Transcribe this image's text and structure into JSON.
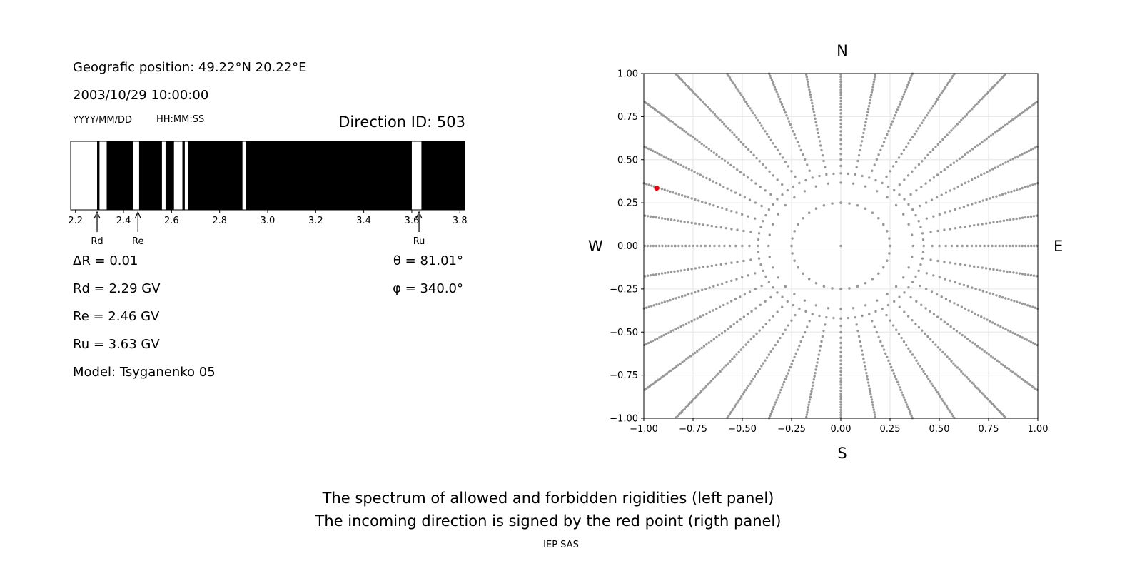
{
  "info": {
    "position": "Geografic position: 49.22°N 20.22°E",
    "datetime": "2003/10/29 10:00:00",
    "date_format": "YYYY/MM/DD",
    "time_format": "HH:MM:SS",
    "direction_id": "Direction ID: 503",
    "delta_r": "ΔR = 0.01",
    "rd": "Rd = 2.29 GV",
    "re": "Re = 2.46 GV",
    "ru": "Ru = 3.63 GV",
    "model": "Model: Tsyganenko 05",
    "theta": "θ = 81.01°",
    "phi": "φ = 340.0°"
  },
  "footer": {
    "line1": "The spectrum of allowed and forbidden rigidities (left panel)",
    "line2": "The incoming direction is signed by the red point (rigth panel)",
    "credit": "IEP SAS"
  },
  "compass": {
    "n": "N",
    "s": "S",
    "w": "W",
    "e": "E"
  },
  "colors": {
    "point": "#999999",
    "highlight": "#e8000b",
    "allowed": "#ffffff",
    "forbidden": "#000000"
  },
  "chart_data": [
    {
      "type": "bar",
      "name": "rigidity-spectrum",
      "xlim": [
        2.18,
        3.82
      ],
      "xticks": [
        2.2,
        2.4,
        2.6,
        2.8,
        3.0,
        3.2,
        3.4,
        3.6,
        3.8
      ],
      "allowed_intervals": [
        [
          2.18,
          2.29
        ],
        [
          2.3,
          2.33
        ],
        [
          2.44,
          2.465
        ],
        [
          2.56,
          2.575
        ],
        [
          2.61,
          2.645
        ],
        [
          2.655,
          2.67
        ],
        [
          2.895,
          2.91
        ],
        [
          3.6,
          3.64
        ]
      ],
      "markers": [
        {
          "label": "Rd",
          "value": 2.29
        },
        {
          "label": "Re",
          "value": 2.46
        },
        {
          "label": "Ru",
          "value": 3.63
        }
      ]
    },
    {
      "type": "scatter",
      "name": "incoming-directions",
      "xlim": [
        -1.0,
        1.0
      ],
      "ylim": [
        -1.0,
        1.0
      ],
      "xticks": [
        -1.0,
        -0.75,
        -0.5,
        -0.25,
        0.0,
        0.25,
        0.5,
        0.75,
        1.0
      ],
      "yticks": [
        -1.0,
        -0.75,
        -0.5,
        -0.25,
        0.0,
        0.25,
        0.5,
        0.75,
        1.0
      ],
      "grid": true,
      "spokes_count": 36,
      "inner_radius": 0.25,
      "ring_radii": [
        0.42
      ],
      "highlight": {
        "x": -0.935,
        "y": 0.335
      }
    }
  ]
}
